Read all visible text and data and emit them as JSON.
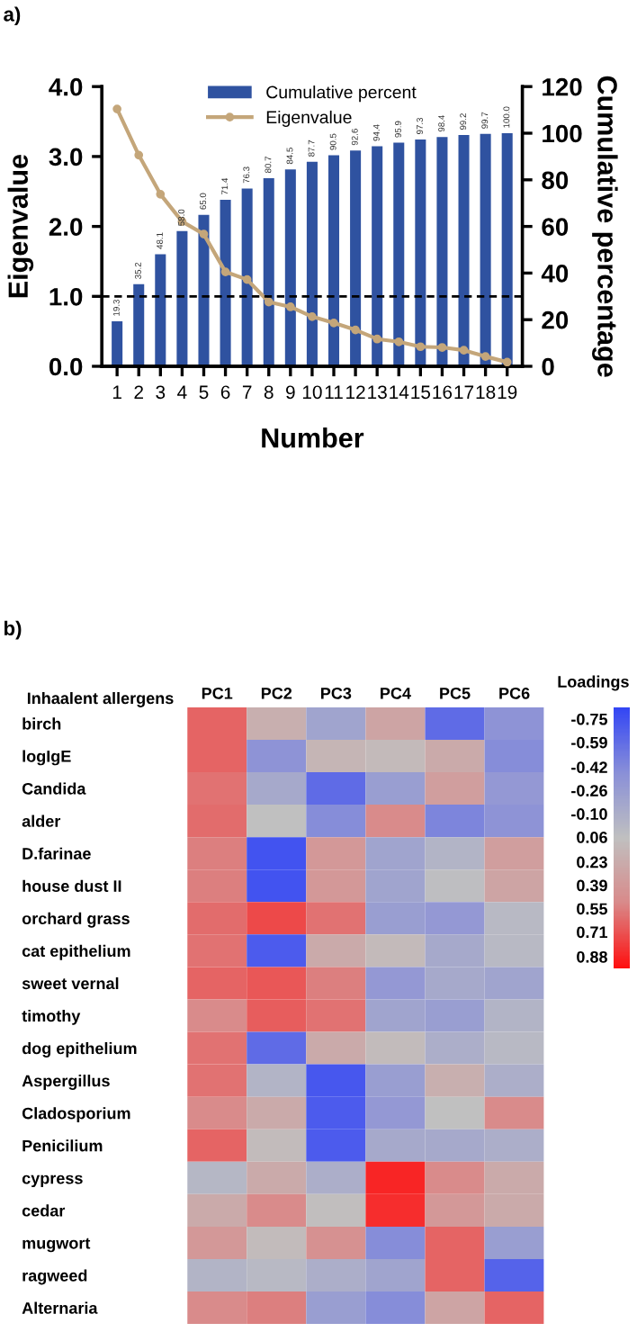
{
  "chart_data": [
    {
      "type": "bar",
      "annotations": [
        "a)"
      ],
      "xlabel": "Number",
      "ylabel": "Eigenvalue",
      "y2label": "Cumulative percentage",
      "categories": [
        "1",
        "2",
        "3",
        "4",
        "5",
        "6",
        "7",
        "8",
        "9",
        "10",
        "11",
        "12",
        "13",
        "14",
        "15",
        "16",
        "17",
        "18",
        "19"
      ],
      "series": [
        {
          "name": "Cumulative percent",
          "type": "bar",
          "axis": "y2",
          "color": "#2f52a0",
          "values": [
            19.3,
            35.2,
            48.1,
            58.0,
            65.0,
            71.4,
            76.3,
            80.7,
            84.5,
            87.7,
            90.5,
            92.6,
            94.4,
            95.9,
            97.3,
            98.4,
            99.2,
            99.7,
            100.0
          ],
          "value_labels": [
            "19.3",
            "35.2",
            "48.1",
            "58.0",
            "65.0",
            "71.4",
            "76.3",
            "80.7",
            "84.5",
            "87.7",
            "90.5",
            "92.6",
            "94.4",
            "95.9",
            "97.3",
            "98.4",
            "99.2",
            "99.7",
            "100.0"
          ]
        },
        {
          "name": "Eigenvalue",
          "type": "line",
          "color": "#c4a67a",
          "marker": "circle",
          "values": [
            3.68,
            3.02,
            2.46,
            2.07,
            1.89,
            1.35,
            1.24,
            0.92,
            0.85,
            0.71,
            0.62,
            0.52,
            0.39,
            0.35,
            0.28,
            0.27,
            0.23,
            0.14,
            0.06
          ]
        }
      ],
      "ylim": [
        0,
        4
      ],
      "yticks": [
        {
          "value": 0,
          "label": "0.0"
        },
        {
          "value": 1,
          "label": "1.0"
        },
        {
          "value": 2,
          "label": "2.0"
        },
        {
          "value": 3,
          "label": "3.0"
        },
        {
          "value": 4,
          "label": "4.0"
        }
      ],
      "y2lim": [
        0,
        120
      ],
      "y2ticks": [
        0,
        20,
        40,
        60,
        80,
        100,
        120
      ],
      "ref_lines": [
        {
          "axis": "y",
          "value": 1.0,
          "color": "#000000",
          "line_style": "dashed"
        }
      ],
      "legend": "top",
      "grid": false
    },
    {
      "type": "heatmap",
      "annotations": [
        "b)"
      ],
      "ylabel": "Inhaalent allergens",
      "clabel": "Loadings",
      "categories": [
        "PC1",
        "PC2",
        "PC3",
        "PC4",
        "PC5",
        "PC6"
      ],
      "y_categories": [
        "birch",
        "logIgE",
        "Candida",
        "alder",
        "D.farinae",
        "house dust II",
        "orchard grass",
        "cat epithelium",
        "sweet vernal",
        "timothy",
        "dog epithelium",
        "Aspergillus",
        "Cladosporium",
        "Penicilium",
        "cypress",
        "cedar",
        "mugwort",
        "ragweed",
        "Alternaria"
      ],
      "cells": [
        [
          0.65,
          0.2,
          -0.2,
          0.3,
          -0.6,
          -0.35
        ],
        [
          0.65,
          -0.35,
          0.15,
          0.12,
          0.25,
          -0.4
        ],
        [
          0.6,
          -0.15,
          -0.6,
          -0.25,
          0.35,
          -0.3
        ],
        [
          0.62,
          0.06,
          -0.4,
          0.5,
          -0.45,
          -0.35
        ],
        [
          0.55,
          -0.75,
          0.4,
          -0.2,
          -0.05,
          0.35
        ],
        [
          0.55,
          -0.75,
          0.4,
          -0.2,
          0.05,
          0.3
        ],
        [
          0.62,
          0.75,
          0.6,
          -0.25,
          -0.3,
          0.0
        ],
        [
          0.6,
          -0.7,
          0.25,
          0.12,
          -0.15,
          0.0
        ],
        [
          0.65,
          0.7,
          0.55,
          -0.3,
          -0.15,
          -0.2
        ],
        [
          0.5,
          0.68,
          0.6,
          -0.2,
          -0.25,
          -0.05
        ],
        [
          0.6,
          -0.6,
          0.25,
          0.1,
          -0.1,
          0.0
        ],
        [
          0.6,
          -0.05,
          -0.72,
          -0.25,
          0.2,
          -0.1
        ],
        [
          0.5,
          0.25,
          -0.7,
          -0.3,
          0.06,
          0.5
        ],
        [
          0.65,
          0.1,
          -0.7,
          -0.15,
          -0.15,
          -0.1
        ],
        [
          -0.02,
          0.25,
          -0.1,
          0.88,
          0.5,
          0.25
        ],
        [
          0.25,
          0.5,
          0.08,
          0.85,
          0.4,
          0.25
        ],
        [
          0.4,
          0.1,
          0.45,
          -0.4,
          0.65,
          -0.25
        ],
        [
          -0.05,
          0.0,
          -0.1,
          -0.2,
          0.65,
          -0.65
        ],
        [
          0.5,
          0.55,
          -0.25,
          -0.4,
          0.3,
          0.65
        ]
      ],
      "clim": [
        -0.83,
        0.96
      ],
      "cticks": [
        -0.75,
        -0.59,
        -0.42,
        -0.26,
        {
          "value": -0.1,
          "label": "-0.10"
        },
        0.06,
        0.23,
        0.39,
        0.55,
        0.71,
        0.88
      ]
    }
  ]
}
